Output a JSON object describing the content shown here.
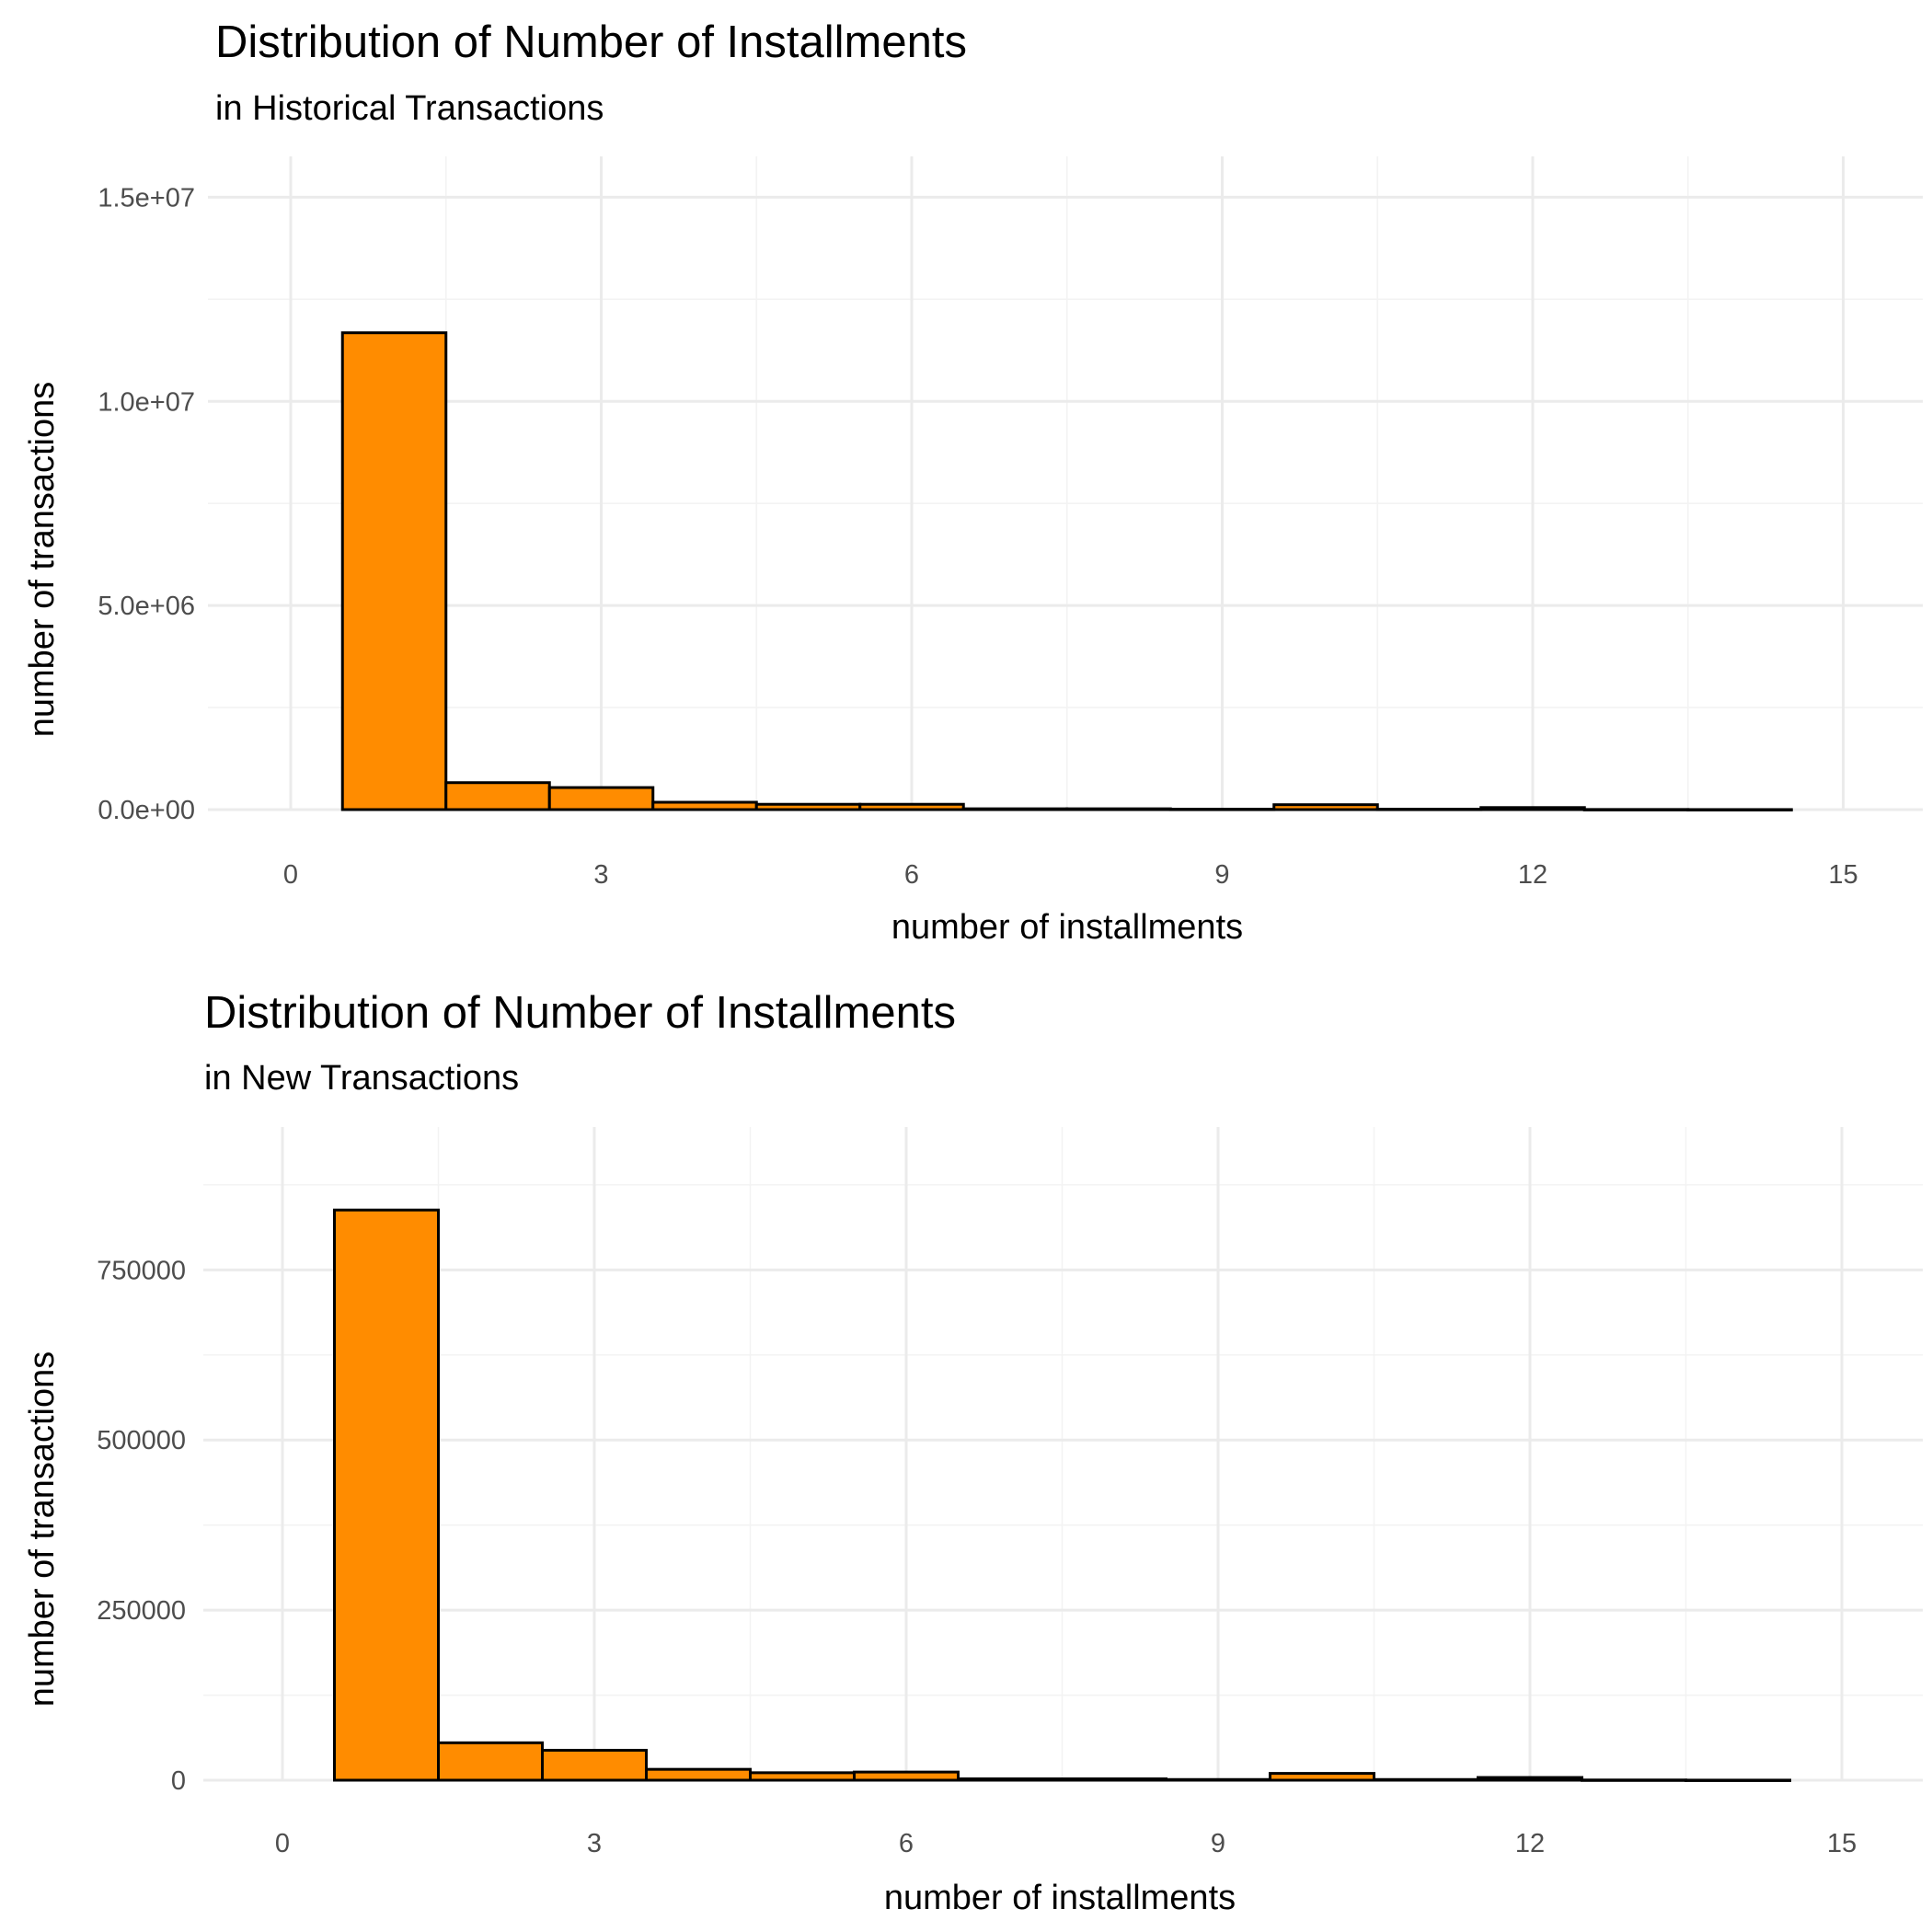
{
  "colors": {
    "bar_fill": "#ff8c00",
    "bar_stroke": "#000000"
  },
  "chart_data": [
    {
      "type": "bar",
      "title": "Distribution of Number of Installments",
      "subtitle": "in Historical Transactions",
      "xlabel": "number of installments",
      "ylabel": "number of transactions",
      "xlim": [
        -0.2,
        15.3
      ],
      "ylim": [
        0,
        16000000
      ],
      "x_ticks": [
        0,
        3,
        6,
        9,
        12,
        15
      ],
      "x_tick_labels": [
        "0",
        "3",
        "6",
        "9",
        "12",
        "15"
      ],
      "y_ticks": [
        0,
        5000000,
        10000000,
        15000000
      ],
      "y_tick_labels": [
        "0.0e+00",
        "5.0e+06",
        "1.0e+07",
        "1.5e+07"
      ],
      "x": [
        1,
        2,
        3,
        4,
        5,
        6,
        7,
        8,
        9,
        10,
        11,
        12,
        13,
        14
      ],
      "values": [
        11680000,
        660000,
        540000,
        180000,
        130000,
        130000,
        20000,
        20000,
        10000,
        120000,
        10000,
        50000,
        3000,
        1000
      ],
      "grid": true
    },
    {
      "type": "bar",
      "title": "Distribution of Number of Installments",
      "subtitle": "in New Transactions",
      "xlabel": "number of installments",
      "ylabel": "number of transactions",
      "xlim": [
        -0.2,
        15.3
      ],
      "ylim": [
        0,
        960000
      ],
      "x_ticks": [
        0,
        3,
        6,
        9,
        12,
        15
      ],
      "x_tick_labels": [
        "0",
        "3",
        "6",
        "9",
        "12",
        "15"
      ],
      "y_ticks": [
        0,
        250000,
        500000,
        750000
      ],
      "y_tick_labels": [
        "0",
        "250000",
        "500000",
        "750000"
      ],
      "x": [
        1,
        2,
        3,
        4,
        5,
        6,
        7,
        8,
        9,
        10,
        11,
        12,
        13,
        14
      ],
      "values": [
        838000,
        55000,
        44000,
        16000,
        11000,
        12000,
        2000,
        2000,
        1000,
        10000,
        1000,
        4000,
        300,
        100
      ],
      "grid": true
    }
  ]
}
